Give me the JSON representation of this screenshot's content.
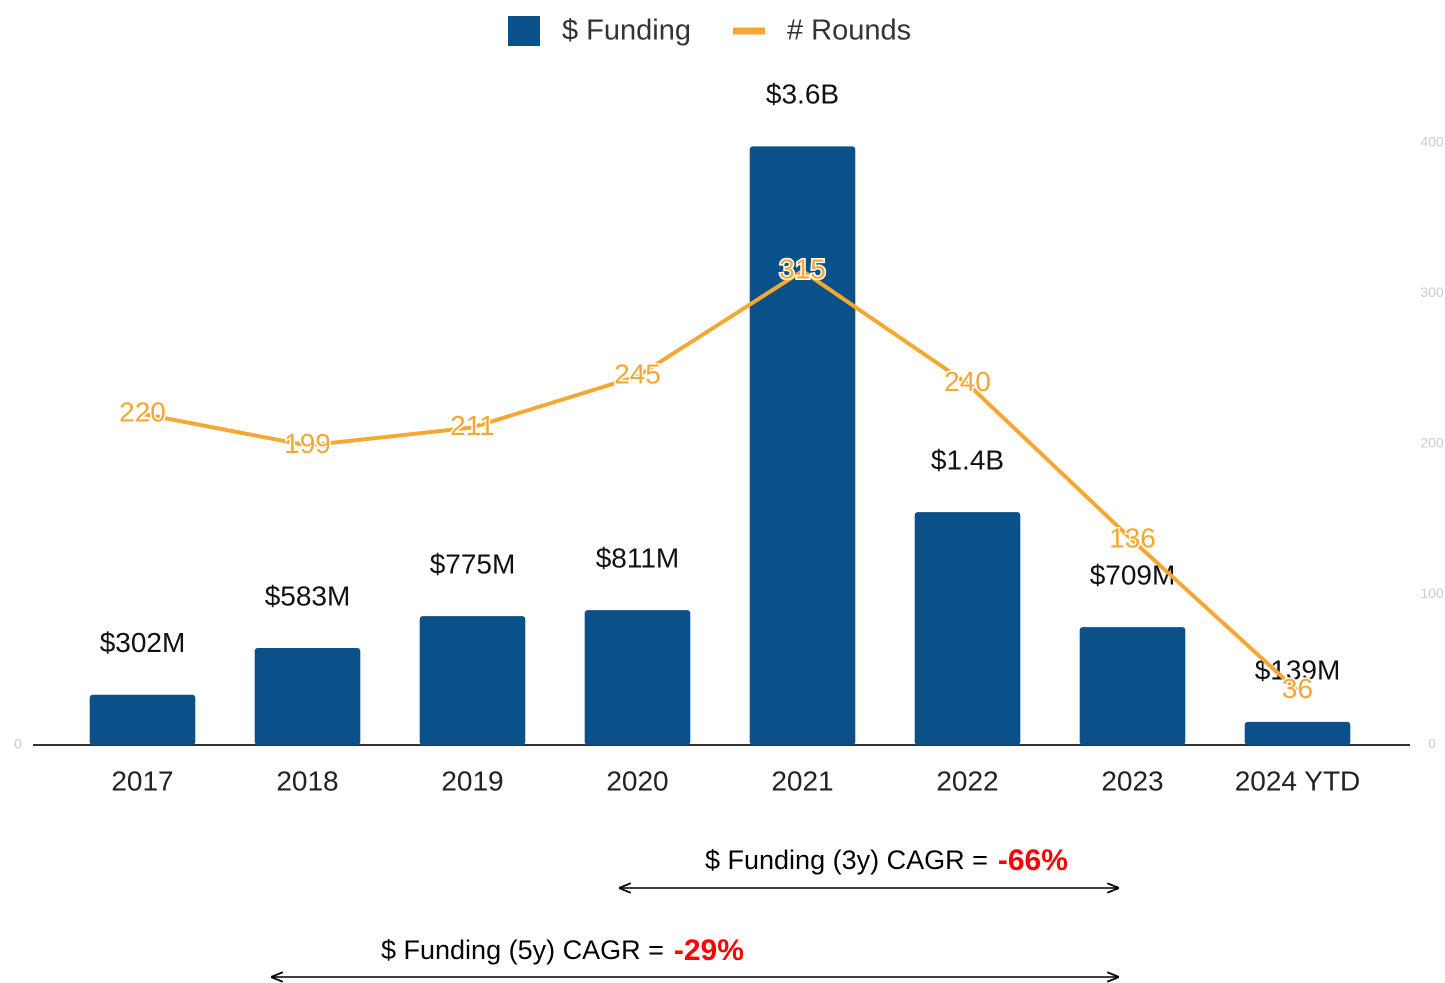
{
  "chart_data": {
    "type": "bar-line",
    "categories": [
      "2017",
      "2018",
      "2019",
      "2020",
      "2021",
      "2022",
      "2023",
      "2024 YTD"
    ],
    "series": [
      {
        "name": "$ Funding",
        "color": "#0b5189",
        "values": [
          302,
          583,
          775,
          811,
          3600,
          1400,
          709,
          139
        ],
        "value_labels": [
          "$302M",
          "$583M",
          "$775M",
          "$811M",
          "$3.6B",
          "$1.4B",
          "$709M",
          "$139M"
        ]
      },
      {
        "name": "# Rounds",
        "color": "#f5a733",
        "axis": "y2",
        "values": [
          220,
          199,
          211,
          245,
          315,
          240,
          136,
          36
        ]
      }
    ],
    "ylim": [
      0,
      3620
    ],
    "yticks": [
      0
    ],
    "y2lim": [
      0,
      400
    ],
    "y2ticks": [
      0,
      100,
      200,
      300,
      400
    ],
    "legend": "top",
    "annotations": [
      {
        "text": "$ Funding (3y) CAGR =",
        "value": "-66%"
      },
      {
        "text": "$ Funding (5y) CAGR =",
        "value": "-29%"
      }
    ]
  }
}
